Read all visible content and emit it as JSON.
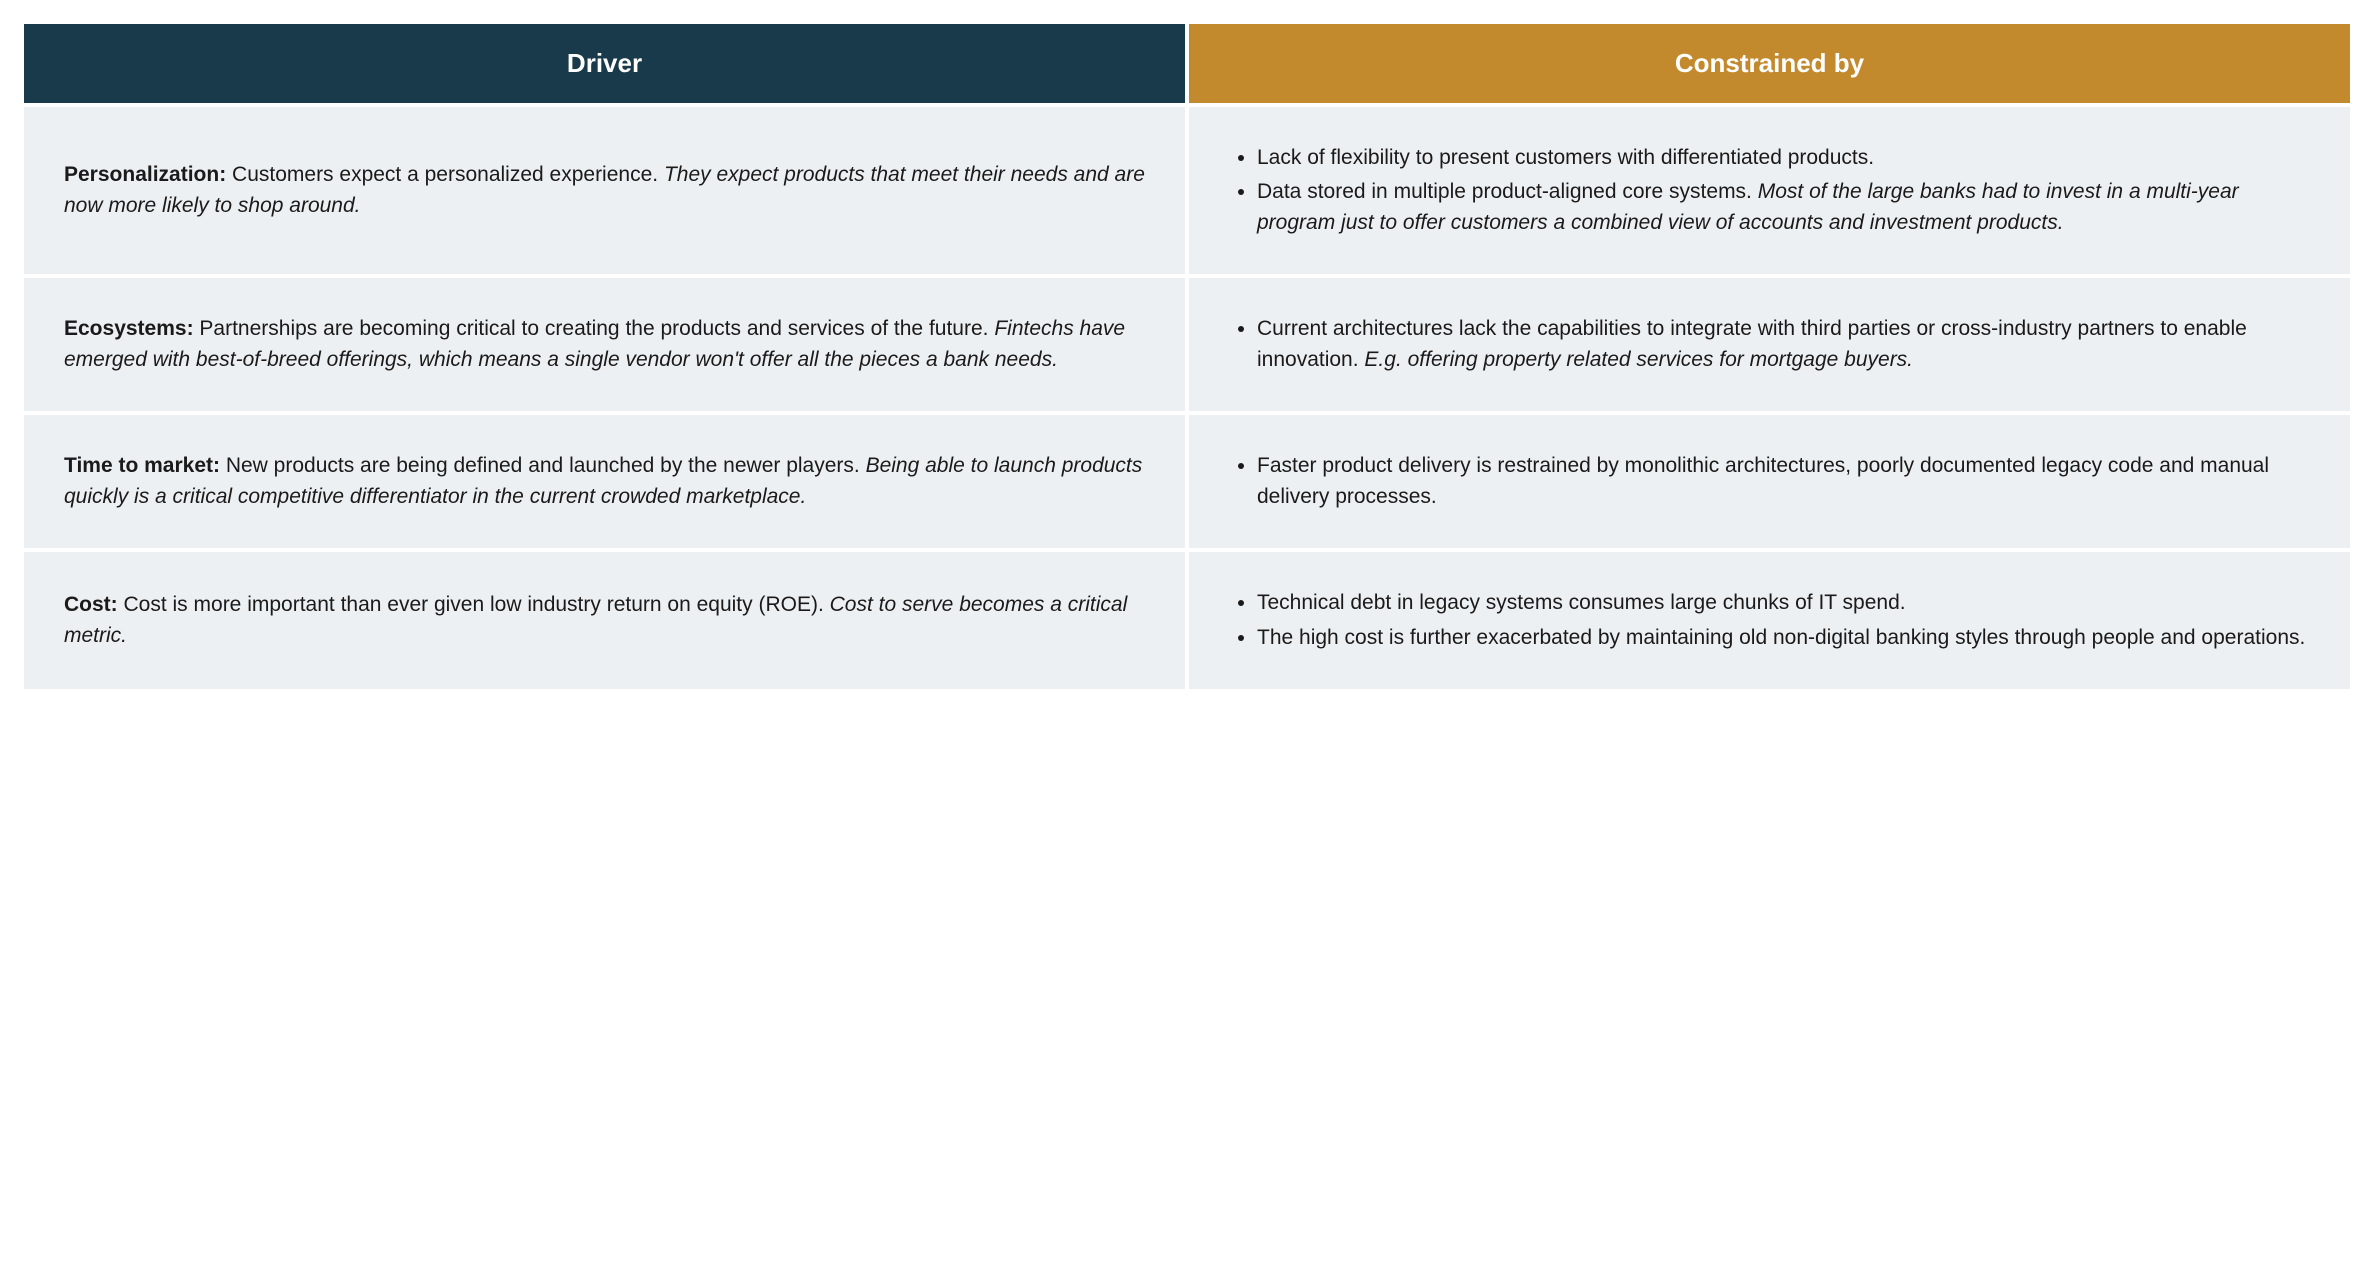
{
  "table": {
    "header": {
      "left": "Driver",
      "right": "Constrained by"
    },
    "styling": {
      "header_left_bg": "#183a4a",
      "header_right_bg": "#c38a2d",
      "header_text_color": "#ffffff",
      "cell_bg": "#edf0f3",
      "text_color": "#1a1a1a",
      "header_fontsize": 26,
      "body_fontsize": 21,
      "page_bg": "#ffffff"
    },
    "rows": [
      {
        "driver_title": "Personalization:",
        "driver_plain": " Customers expect a personalized experience. ",
        "driver_italic": "They expect products that meet their needs and are now more likely to shop around.",
        "constraints": [
          {
            "plain": "Lack of flexibility to present customers with differentiated products.",
            "italic": ""
          },
          {
            "plain": "Data stored in multiple product-aligned core systems. ",
            "italic": "Most of the large banks had to invest in a multi-year program just to offer customers a combined view of accounts and investment products."
          }
        ]
      },
      {
        "driver_title": "Ecosystems:",
        "driver_plain": " Partnerships are becoming critical to creating the products and services of the future. ",
        "driver_italic": "Fintechs have emerged with best-of-breed offerings, which means a single vendor won't offer all the pieces a bank needs.",
        "constraints": [
          {
            "plain": "Current architectures lack the capabilities to integrate with third parties or cross-industry partners to enable innovation. ",
            "italic": "E.g. offering property related services for mortgage buyers."
          }
        ]
      },
      {
        "driver_title": "Time to market:",
        "driver_plain": " New products are being defined and launched by the newer players. ",
        "driver_italic": "Being able to launch products quickly is a critical competitive differentiator in the current crowded marketplace.",
        "constraints": [
          {
            "plain": "Faster product delivery is restrained by monolithic architectures, poorly documented legacy code and manual delivery processes.",
            "italic": ""
          }
        ]
      },
      {
        "driver_title": "Cost:",
        "driver_plain": " Cost is more important than ever given low industry return on equity (ROE). ",
        "driver_italic": "Cost to serve becomes a critical metric.",
        "constraints": [
          {
            "plain": "Technical debt in legacy systems consumes large chunks of IT spend.",
            "italic": ""
          },
          {
            "plain": "The high cost is further exacerbated by maintaining old non-digital banking styles through people and operations.",
            "italic": ""
          }
        ]
      }
    ]
  }
}
